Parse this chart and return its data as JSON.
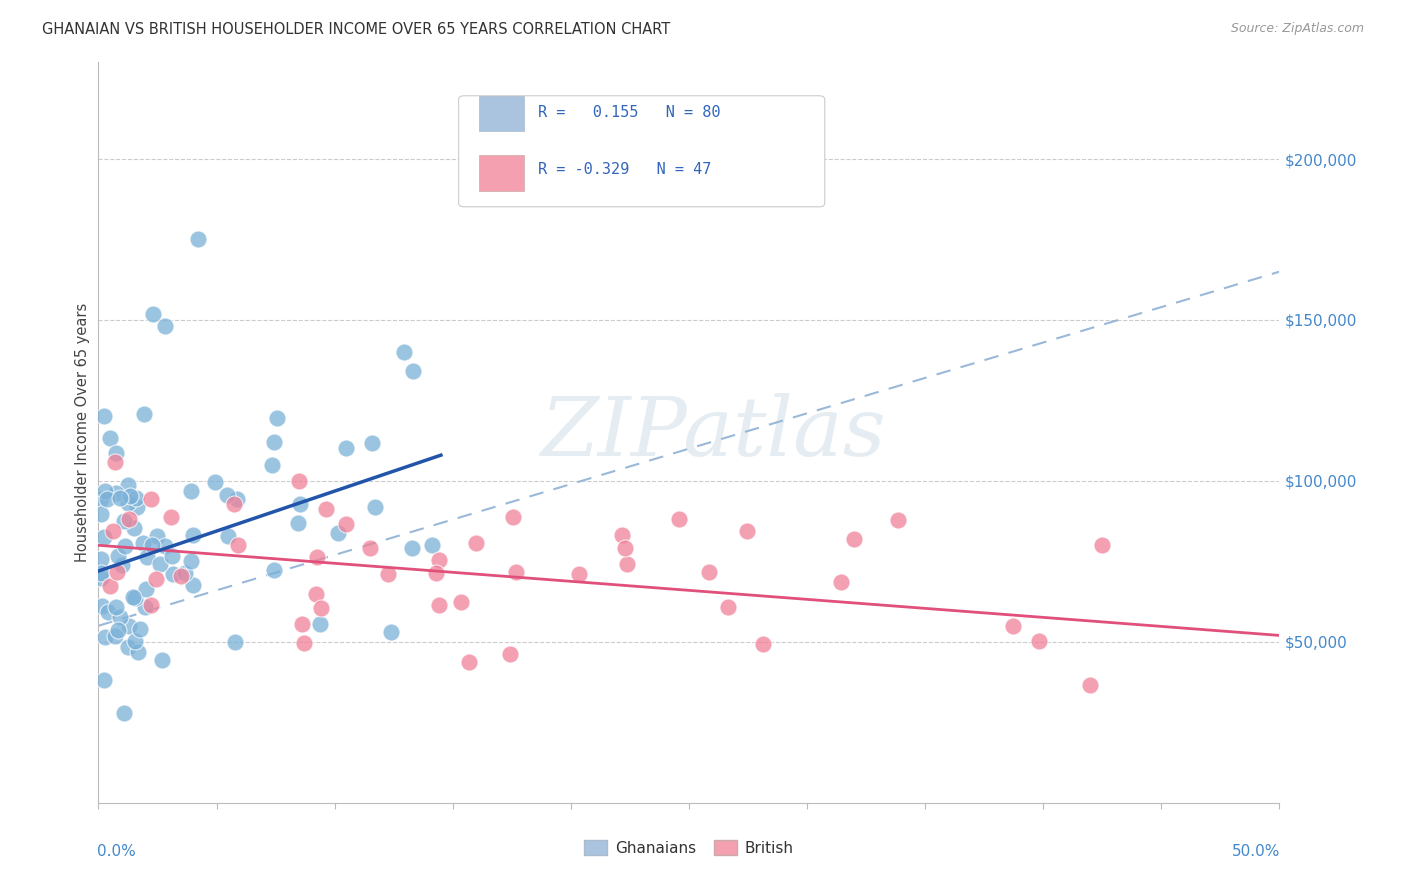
{
  "title": "GHANAIAN VS BRITISH HOUSEHOLDER INCOME OVER 65 YEARS CORRELATION CHART",
  "source": "Source: ZipAtlas.com",
  "ylabel": "Householder Income Over 65 years",
  "xlim": [
    0.0,
    0.5
  ],
  "ylim": [
    0,
    230000
  ],
  "yticks_right": [
    50000,
    100000,
    150000,
    200000
  ],
  "ytick_labels_right": [
    "$50,000",
    "$100,000",
    "$150,000",
    "$200,000"
  ],
  "background_color": "#ffffff",
  "legend_color1": "#aac4e0",
  "legend_color2": "#f4a0b0",
  "dot_color_ghanaian": "#7ab0d8",
  "dot_color_british": "#f08098",
  "trend_color_ghanaian": "#2255aa",
  "trend_color_british": "#e0507a",
  "trend_dashed_color": "#9ab8d8",
  "gh_trend_x": [
    0.0,
    0.145
  ],
  "gh_trend_y": [
    72000,
    108000
  ],
  "br_trend_x": [
    0.0,
    0.5
  ],
  "br_trend_y": [
    80000,
    52000
  ],
  "dash_trend_x": [
    0.0,
    0.5
  ],
  "dash_trend_y": [
    55000,
    165000
  ]
}
